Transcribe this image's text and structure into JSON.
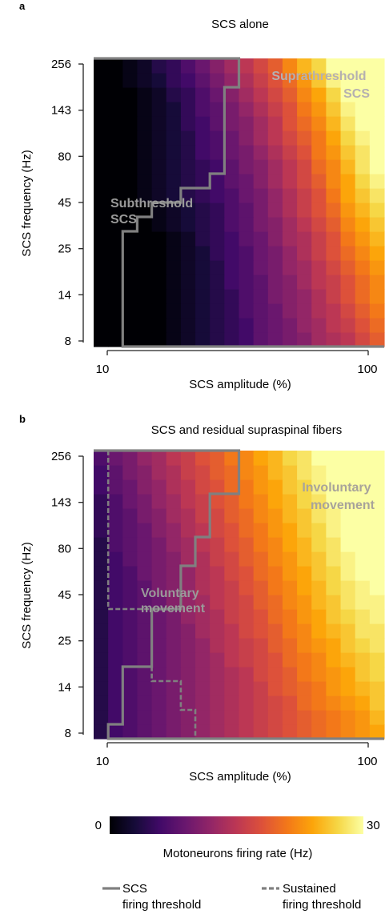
{
  "colorbar": {
    "min": 0,
    "max": 30,
    "min_label": "0",
    "max_label": "30",
    "label": "Motoneurons firing rate (Hz)",
    "colormap": "inferno",
    "stops": [
      "#000004",
      "#160b39",
      "#420a68",
      "#6a176e",
      "#932667",
      "#bc3754",
      "#dd513a",
      "#f37819",
      "#fca50a",
      "#f6d746",
      "#fcffa4"
    ]
  },
  "legend": {
    "solid_line1": "SCS",
    "solid_line2": "firing threshold",
    "dashed_line1": "Sustained",
    "dashed_line2": "firing threshold",
    "line_color": "#808080"
  },
  "chart_data": [
    {
      "panel_label": "a",
      "type": "heatmap",
      "title": "SCS alone",
      "xlabel": "SCS amplitude (%)",
      "ylabel": "SCS frequency (Hz)",
      "x_ticks": [
        "10",
        "100"
      ],
      "y_ticks": [
        "8",
        "14",
        "25",
        "45",
        "80",
        "143",
        "256"
      ],
      "annotations": [
        {
          "id": "subthreshold",
          "line1": "Subthreshold",
          "line2": "SCS"
        },
        {
          "id": "suprathreshold",
          "line1": "Suprathreshold",
          "line2": "SCS"
        }
      ],
      "thresholds": {
        "scs_firing_col_start": [
          2,
          2,
          2,
          2,
          2,
          2,
          2,
          2,
          3,
          4,
          6,
          8,
          9,
          9,
          9,
          9,
          9,
          9,
          10,
          10
        ],
        "sustained_firing_col_start": null
      },
      "values": [
        [
          0,
          0,
          0,
          0,
          0,
          1,
          2,
          3,
          4,
          5,
          6,
          8,
          9,
          10,
          11,
          13,
          14,
          15,
          17,
          19
        ],
        [
          0,
          0,
          0,
          0,
          0,
          1,
          2,
          3,
          4,
          5,
          6,
          8,
          9,
          10,
          12,
          13,
          15,
          16,
          18,
          20
        ],
        [
          0,
          0,
          0,
          0,
          0,
          1,
          2,
          3,
          4,
          5,
          7,
          8,
          9,
          11,
          12,
          14,
          15,
          17,
          19,
          21
        ],
        [
          0,
          0,
          0,
          0,
          0,
          1,
          2,
          3,
          4,
          5,
          7,
          8,
          10,
          11,
          12,
          14,
          16,
          18,
          20,
          22
        ],
        [
          0,
          0,
          0,
          0,
          0,
          1,
          2,
          3,
          4,
          6,
          7,
          8,
          10,
          11,
          13,
          15,
          16,
          18,
          20,
          22
        ],
        [
          0,
          0,
          0,
          0,
          0,
          1,
          2,
          3,
          4,
          6,
          7,
          9,
          10,
          12,
          13,
          15,
          17,
          19,
          21,
          23
        ],
        [
          0,
          0,
          0,
          0,
          0,
          1,
          2,
          3,
          5,
          6,
          7,
          9,
          10,
          12,
          14,
          16,
          18,
          20,
          22,
          24
        ],
        [
          0,
          0,
          0,
          0,
          0,
          1,
          2,
          4,
          5,
          6,
          8,
          9,
          11,
          13,
          14,
          16,
          18,
          21,
          23,
          25
        ],
        [
          0,
          0,
          0,
          0,
          1,
          2,
          3,
          4,
          5,
          7,
          8,
          10,
          11,
          13,
          15,
          17,
          19,
          22,
          24,
          26
        ],
        [
          0,
          0,
          0,
          0,
          1,
          2,
          3,
          4,
          5,
          7,
          8,
          10,
          12,
          14,
          16,
          18,
          20,
          23,
          25,
          27
        ],
        [
          0,
          0,
          0,
          1,
          2,
          3,
          4,
          5,
          6,
          7,
          9,
          10,
          12,
          14,
          16,
          18,
          21,
          24,
          26,
          28
        ],
        [
          0,
          0,
          0,
          1,
          2,
          3,
          4,
          5,
          6,
          8,
          9,
          11,
          13,
          15,
          17,
          19,
          22,
          24,
          27,
          29
        ],
        [
          0,
          0,
          0,
          1,
          2,
          3,
          4,
          5,
          6,
          8,
          10,
          11,
          13,
          15,
          17,
          20,
          22,
          25,
          28,
          30
        ],
        [
          0,
          0,
          0,
          1,
          2,
          3,
          4,
          6,
          7,
          9,
          10,
          12,
          14,
          16,
          18,
          21,
          23,
          26,
          28,
          30
        ],
        [
          0,
          0,
          0,
          1,
          2,
          3,
          4,
          6,
          7,
          9,
          11,
          13,
          15,
          17,
          19,
          21,
          24,
          27,
          29,
          30
        ],
        [
          0,
          0,
          0,
          1,
          2,
          3,
          5,
          6,
          8,
          10,
          11,
          13,
          15,
          18,
          20,
          22,
          25,
          28,
          30,
          30
        ],
        [
          0,
          0,
          0,
          1,
          2,
          3,
          5,
          7,
          8,
          10,
          12,
          14,
          16,
          18,
          21,
          23,
          26,
          29,
          30,
          30
        ],
        [
          0,
          0,
          0,
          1,
          2,
          4,
          5,
          7,
          9,
          11,
          13,
          15,
          17,
          19,
          22,
          24,
          27,
          30,
          30,
          30
        ],
        [
          0,
          0,
          1,
          2,
          3,
          5,
          6,
          8,
          10,
          12,
          14,
          16,
          18,
          20,
          23,
          26,
          29,
          30,
          30,
          30
        ],
        [
          0,
          0,
          1,
          2,
          4,
          5,
          7,
          9,
          11,
          13,
          15,
          17,
          19,
          22,
          25,
          27,
          30,
          30,
          30,
          30
        ]
      ]
    },
    {
      "panel_label": "b",
      "type": "heatmap",
      "title": "SCS and residual supraspinal fibers",
      "xlabel": "SCS amplitude (%)",
      "ylabel": "SCS frequency (Hz)",
      "x_ticks": [
        "10",
        "100"
      ],
      "y_ticks": [
        "8",
        "14",
        "25",
        "45",
        "80",
        "143",
        "256"
      ],
      "annotations": [
        {
          "id": "voluntary",
          "line1": "Voluntary",
          "line2": "movement"
        },
        {
          "id": "involuntary",
          "line1": "Involuntary",
          "line2": "movement"
        }
      ],
      "thresholds": {
        "scs_firing_col_start": [
          1,
          2,
          2,
          2,
          2,
          4,
          4,
          4,
          4,
          6,
          6,
          6,
          7,
          7,
          8,
          8,
          8,
          10,
          10,
          10
        ],
        "sustained_firing_col_start": [
          7,
          7,
          6,
          6,
          4,
          4,
          4,
          4,
          4,
          1,
          1,
          1,
          1,
          1,
          1,
          1,
          1,
          1,
          1,
          1
        ]
      },
      "values": [
        [
          4,
          6,
          7,
          8,
          9,
          10,
          11,
          12,
          13,
          14,
          15,
          16,
          17,
          18,
          19,
          20,
          21,
          22,
          23,
          24
        ],
        [
          4,
          6,
          7,
          8,
          9,
          10,
          11,
          12,
          13,
          14,
          15,
          16,
          17,
          18,
          19,
          20,
          21,
          22,
          23,
          25
        ],
        [
          4,
          6,
          7,
          8,
          9,
          10,
          11,
          12,
          13,
          14,
          15,
          16,
          17,
          18,
          20,
          21,
          22,
          23,
          24,
          26
        ],
        [
          4,
          6,
          7,
          8,
          9,
          10,
          11,
          12,
          13,
          14,
          15,
          16,
          18,
          19,
          20,
          21,
          23,
          24,
          25,
          26
        ],
        [
          4,
          6,
          7,
          8,
          9,
          10,
          11,
          12,
          13,
          14,
          15,
          17,
          18,
          19,
          21,
          22,
          23,
          24,
          26,
          27
        ],
        [
          4,
          6,
          7,
          8,
          9,
          10,
          11,
          12,
          13,
          15,
          16,
          17,
          18,
          20,
          21,
          22,
          24,
          25,
          26,
          27
        ],
        [
          4,
          6,
          7,
          8,
          9,
          10,
          11,
          12,
          14,
          15,
          16,
          17,
          19,
          20,
          22,
          23,
          24,
          26,
          27,
          28
        ],
        [
          4,
          6,
          7,
          8,
          9,
          10,
          11,
          13,
          14,
          15,
          17,
          18,
          19,
          21,
          22,
          24,
          25,
          26,
          28,
          28
        ],
        [
          4,
          6,
          7,
          8,
          9,
          10,
          12,
          13,
          14,
          16,
          17,
          18,
          20,
          21,
          23,
          24,
          26,
          27,
          28,
          29
        ],
        [
          4,
          6,
          7,
          8,
          9,
          11,
          12,
          13,
          15,
          16,
          17,
          19,
          20,
          22,
          23,
          25,
          26,
          28,
          29,
          29
        ],
        [
          4,
          6,
          7,
          8,
          10,
          11,
          12,
          14,
          15,
          16,
          18,
          19,
          21,
          22,
          24,
          25,
          27,
          28,
          29,
          30
        ],
        [
          4,
          6,
          7,
          9,
          10,
          11,
          12,
          14,
          15,
          17,
          18,
          20,
          21,
          23,
          24,
          26,
          27,
          29,
          30,
          30
        ],
        [
          4,
          6,
          8,
          9,
          10,
          11,
          13,
          14,
          16,
          17,
          19,
          20,
          22,
          23,
          25,
          26,
          28,
          29,
          30,
          30
        ],
        [
          4,
          7,
          8,
          9,
          10,
          12,
          13,
          15,
          16,
          18,
          19,
          21,
          22,
          24,
          25,
          27,
          28,
          30,
          30,
          30
        ],
        [
          5,
          7,
          8,
          9,
          11,
          12,
          14,
          15,
          17,
          18,
          20,
          21,
          23,
          24,
          26,
          27,
          29,
          30,
          30,
          30
        ],
        [
          5,
          7,
          8,
          10,
          11,
          13,
          14,
          16,
          17,
          19,
          20,
          22,
          23,
          25,
          26,
          28,
          29,
          30,
          30,
          30
        ],
        [
          5,
          7,
          9,
          10,
          12,
          13,
          15,
          16,
          18,
          19,
          21,
          22,
          24,
          25,
          27,
          28,
          30,
          30,
          30,
          30
        ],
        [
          6,
          8,
          9,
          11,
          12,
          14,
          15,
          17,
          18,
          20,
          21,
          23,
          24,
          26,
          27,
          29,
          30,
          30,
          30,
          30
        ],
        [
          6,
          8,
          10,
          11,
          13,
          14,
          16,
          17,
          19,
          20,
          22,
          23,
          25,
          26,
          28,
          29,
          30,
          30,
          30,
          30
        ],
        [
          7,
          9,
          10,
          12,
          13,
          15,
          16,
          18,
          19,
          21,
          22,
          24,
          25,
          27,
          28,
          30,
          30,
          30,
          30,
          30
        ]
      ]
    }
  ]
}
